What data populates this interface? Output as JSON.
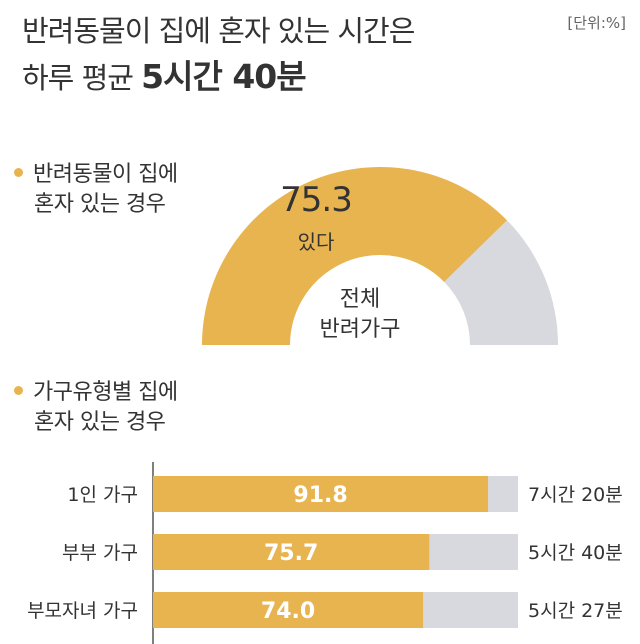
{
  "title": {
    "line1": "반려동물이 집에 혼자 있는 시간은",
    "line2_prefix": "하루 평균 ",
    "line2_highlight": "5시간 40분"
  },
  "unit_label": "[단위:%]",
  "section1": {
    "line1": "반려동물이 집에",
    "line2": "혼자 있는 경우"
  },
  "section2": {
    "line1": "가구유형별 집에",
    "line2": "혼자 있는 경우"
  },
  "colors": {
    "accent": "#e8b44f",
    "remainder": "#d8d9de",
    "axis": "#555555"
  },
  "chart_data": [
    {
      "type": "pie",
      "style": "half-donut",
      "slices": [
        {
          "label": "있다",
          "value": 75.3
        }
      ],
      "center_label": [
        "전체",
        "반려가구"
      ],
      "max": 100
    },
    {
      "type": "bar",
      "orientation": "horizontal",
      "categories": [
        "1인 가구",
        "부부 가구",
        "부모자녀 가구"
      ],
      "values": [
        91.8,
        75.7,
        74.0
      ],
      "annotations": [
        "7시간 20분",
        "5시간 40분",
        "5시간 27분"
      ],
      "xlim": [
        0,
        100
      ]
    }
  ]
}
